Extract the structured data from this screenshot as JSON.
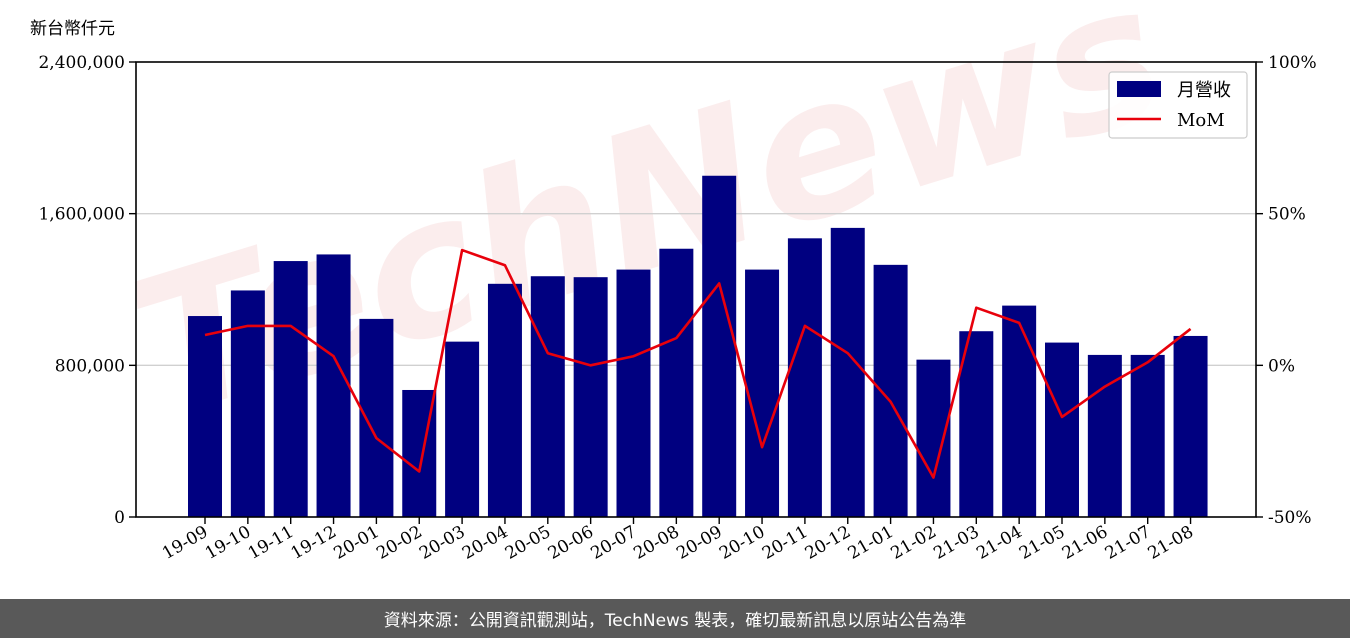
{
  "unit_label": "新台幣仟元",
  "watermark_text": "TechNews",
  "footer_text": "資料來源：公開資訊觀測站，TechNews 製表，確切最新訊息以原站公告為準",
  "chart_data": {
    "type": "bar",
    "title": "",
    "xlabel": "",
    "ylabel": "新台幣仟元",
    "categories": [
      "19-09",
      "19-10",
      "19-11",
      "19-12",
      "20-01",
      "20-02",
      "20-03",
      "20-04",
      "20-05",
      "20-06",
      "20-07",
      "20-08",
      "20-09",
      "20-10",
      "20-11",
      "20-12",
      "21-01",
      "21-02",
      "21-03",
      "21-04",
      "21-05",
      "21-06",
      "21-07",
      "21-08"
    ],
    "series": [
      {
        "name": "月營收",
        "type": "bar",
        "axis": "left",
        "color": "#000080",
        "values": [
          1060000,
          1195000,
          1350000,
          1385000,
          1045000,
          670000,
          925000,
          1230000,
          1270000,
          1265000,
          1305000,
          1415000,
          1800000,
          1305000,
          1470000,
          1525000,
          1330000,
          830000,
          980000,
          1115000,
          920000,
          855000,
          855000,
          955000
        ]
      },
      {
        "name": "MoM",
        "type": "line",
        "axis": "right",
        "color": "#e8000b",
        "values": [
          10,
          13,
          13,
          3,
          -24,
          -35,
          38,
          33,
          4,
          0,
          3,
          9,
          27,
          -27,
          13,
          4,
          -12,
          -37,
          19,
          14,
          -17,
          -7,
          1,
          12
        ]
      }
    ],
    "y_left": {
      "lim": [
        0,
        2400000
      ],
      "ticks": [
        0,
        800000,
        1600000,
        2400000
      ],
      "tick_labels": [
        "0",
        "800,000",
        "1,600,000",
        "2,400,000"
      ]
    },
    "y_right": {
      "lim": [
        -50,
        100
      ],
      "ticks": [
        -50,
        0,
        50,
        100
      ],
      "tick_labels": [
        "-50%",
        "0%",
        "50%",
        "100%"
      ]
    },
    "grid": "horizontal",
    "legend": "top-right"
  }
}
